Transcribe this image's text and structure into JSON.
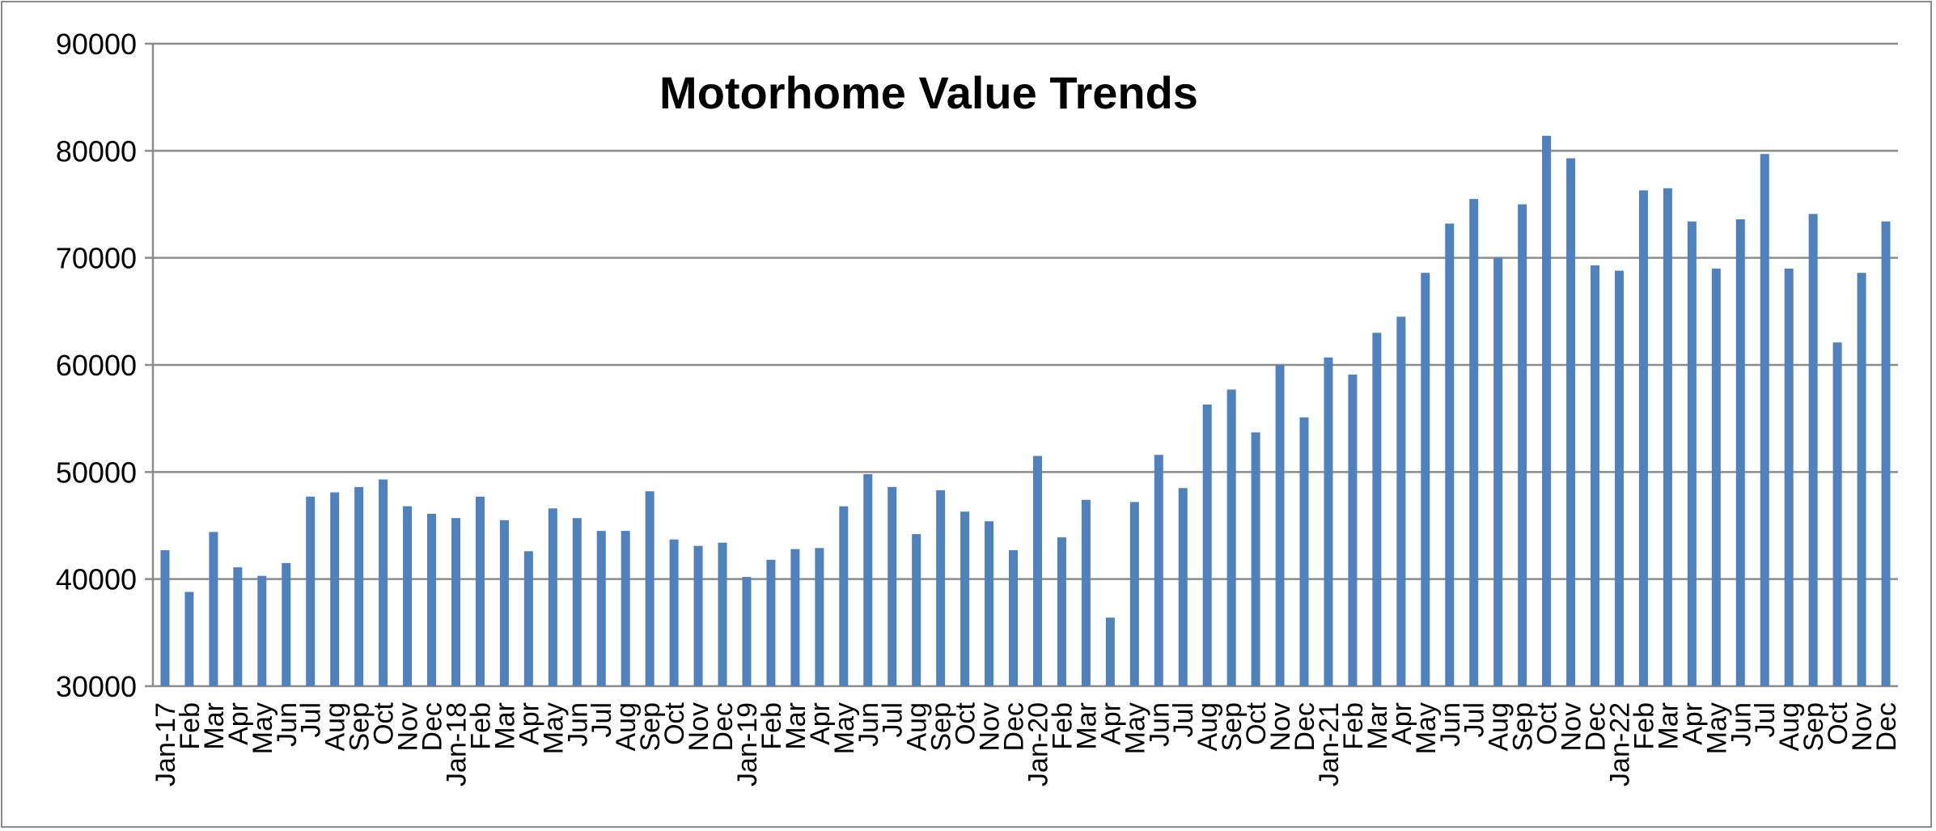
{
  "chart_data": {
    "type": "bar",
    "title": "Motorhome Value Trends",
    "xlabel": "",
    "ylabel": "",
    "ylim": [
      30000,
      90000
    ],
    "yticks": [
      30000,
      40000,
      50000,
      60000,
      70000,
      80000,
      90000
    ],
    "grid": true,
    "legend": "none",
    "bar_color": "#4f81bd",
    "categories": [
      "Jan-17",
      "Feb",
      "Mar",
      "Apr",
      "May",
      "Jun",
      "Jul",
      "Aug",
      "Sep",
      "Oct",
      "Nov",
      "Dec",
      "Jan-18",
      "Feb",
      "Mar",
      "Apr",
      "May",
      "Jun",
      "Jul",
      "Aug",
      "Sep",
      "Oct",
      "Nov",
      "Dec",
      "Jan-19",
      "Feb",
      "Mar",
      "Apr",
      "May",
      "Jun",
      "Jul",
      "Aug",
      "Sep",
      "Oct",
      "Nov",
      "Dec",
      "Jan-20",
      "Feb",
      "Mar",
      "Apr",
      "May",
      "Jun",
      "Jul",
      "Aug",
      "Sep",
      "Oct",
      "Nov",
      "Dec",
      "Jan-21",
      "Feb",
      "Mar",
      "Apr",
      "May",
      "Jun",
      "Jul",
      "Aug",
      "Sep",
      "Oct",
      "Nov",
      "Dec",
      "Jan-22",
      "Feb",
      "Mar",
      "Apr",
      "May",
      "Jun",
      "Jul",
      "Aug",
      "Sep",
      "Oct",
      "Nov",
      "Dec"
    ],
    "values": [
      42700,
      38800,
      44400,
      41100,
      40300,
      41500,
      47700,
      48100,
      48600,
      49300,
      46800,
      46100,
      45700,
      47700,
      45500,
      42600,
      46600,
      45700,
      44500,
      44500,
      48200,
      43700,
      43100,
      43400,
      40200,
      41800,
      42800,
      42900,
      46800,
      49800,
      48600,
      44200,
      48300,
      46300,
      45400,
      42700,
      51500,
      43900,
      47400,
      36400,
      47200,
      51600,
      48500,
      56300,
      57700,
      53700,
      60000,
      55100,
      60700,
      59100,
      63000,
      64500,
      68600,
      73200,
      75500,
      70000,
      75000,
      81400,
      79300,
      69300,
      68800,
      76300,
      76500,
      73400,
      69000,
      73600,
      79700,
      69000,
      74100,
      62100,
      68600,
      73400
    ]
  }
}
